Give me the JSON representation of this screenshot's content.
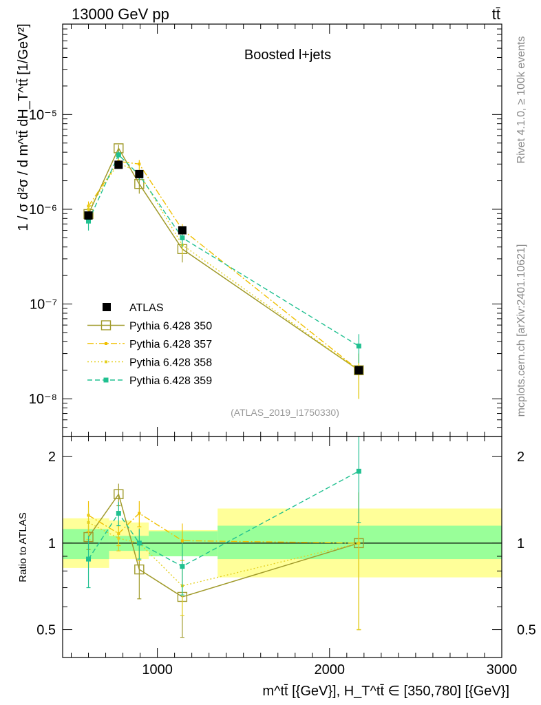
{
  "header": {
    "left": "13000 GeV pp",
    "right": "tt̄"
  },
  "side": {
    "rivet": "Rivet 4.1.0, ≥ 100k events",
    "source": "mcplots.cern.ch [arXiv:2401.10621]"
  },
  "chart_data": {
    "type": "line",
    "title": "Boosted l+jets",
    "analysis_id": "(ATLAS_2019_I1750330)",
    "ylabel_main": "1 / σ d²σ / d m^tt̄ dH_T^tt̄ [1/GeV²]",
    "ylabel_ratio": "Ratio to ATLAS",
    "xlabel": "m^tt̄ [{GeV}], H_T^tt̄ ∈ [350,780] [{GeV}]",
    "xlim": [
      450,
      3000
    ],
    "ylim_main": [
      4e-09,
      9e-05
    ],
    "ylim_ratio": [
      0.4,
      2.35
    ],
    "x_ticks": [
      1000,
      2000,
      3000
    ],
    "x_tick_labels": [
      "1000",
      "2000",
      "3000"
    ],
    "y_ticks_main": [
      1e-08,
      1e-07,
      1e-06,
      1e-05
    ],
    "y_tick_labels_main": [
      "10⁻⁸",
      "10⁻⁷",
      "10⁻⁶",
      "10⁻⁵"
    ],
    "y_ticks_ratio": [
      0.5,
      1,
      2
    ],
    "y_tick_labels_ratio": [
      "0.5",
      "1",
      "2"
    ],
    "bins": [
      {
        "lo": 450,
        "hi": 720
      },
      {
        "lo": 720,
        "hi": 850
      },
      {
        "lo": 850,
        "hi": 950
      },
      {
        "lo": 950,
        "hi": 1350
      },
      {
        "lo": 1350,
        "hi": 3000
      }
    ],
    "data": {
      "name": "ATLAS",
      "color": "#000000",
      "x": [
        600,
        775,
        895,
        1145,
        2170
      ],
      "y": [
        8.6e-07,
        2.95e-06,
        2.35e-06,
        6e-07,
        2e-08
      ],
      "err_lo": [
        7.8e-08,
        1.9e-07,
        1.6e-07,
        5.5e-08,
        2e-09
      ],
      "err_hi": [
        7.8e-08,
        1.9e-07,
        1.6e-07,
        5.5e-08,
        2e-09
      ],
      "band_inner": [
        [
          0.88,
          1.12
        ],
        [
          0.94,
          1.06
        ],
        [
          0.94,
          1.06
        ],
        [
          0.9,
          1.1
        ],
        [
          0.88,
          1.15
        ]
      ],
      "band_outer": [
        [
          0.82,
          1.22
        ],
        [
          0.88,
          1.2
        ],
        [
          0.88,
          1.18
        ],
        [
          0.95,
          1.11
        ],
        [
          0.76,
          1.32
        ]
      ]
    },
    "series": [
      {
        "name": "Pythia 6.428 350",
        "color": "#a09a2a",
        "dash": "",
        "marker": "open-square",
        "x": [
          600,
          775,
          895,
          1145,
          2170
        ],
        "y": [
          8.9e-07,
          4.4e-06,
          1.85e-06,
          3.8e-07,
          2e-08
        ],
        "ratio": [
          1.05,
          1.48,
          0.81,
          0.65,
          1.0
        ],
        "ratio_err": [
          0.1,
          0.13,
          0.17,
          0.18,
          0.5
        ]
      },
      {
        "name": "Pythia 6.428 357",
        "color": "#f0c000",
        "dash": "9,3,2,3",
        "marker": "small-square",
        "x": [
          600,
          775,
          895,
          1145,
          2170
        ],
        "y": [
          1.08e-06,
          3.2e-06,
          3e-06,
          6.1e-07,
          2e-08
        ],
        "ratio": [
          1.25,
          1.08,
          1.27,
          1.02,
          1.0
        ],
        "ratio_err": [
          0.15,
          0.1,
          0.13,
          0.15,
          0.5
        ]
      },
      {
        "name": "Pythia 6.428 358",
        "color": "#e4d020",
        "dash": "2,3",
        "marker": "small-square",
        "x": [
          600,
          775,
          895,
          1145,
          2170
        ],
        "y": [
          1e-06,
          3.1e-06,
          2.4e-06,
          4.2e-07,
          2e-08
        ],
        "ratio": [
          1.18,
          1.04,
          1.0,
          0.71,
          1.0
        ],
        "ratio_err": [
          0.15,
          0.1,
          0.13,
          0.15,
          0.5
        ]
      },
      {
        "name": "Pythia 6.428 359",
        "color": "#20c090",
        "dash": "7,4",
        "marker": "filled-square",
        "x": [
          600,
          775,
          895,
          1145,
          2170
        ],
        "y": [
          7.5e-07,
          3.75e-06,
          2.3e-06,
          5e-07,
          3.6e-08
        ],
        "ratio": [
          0.88,
          1.27,
          1.0,
          0.83,
          1.78
        ],
        "ratio_err": [
          0.18,
          0.12,
          0.12,
          0.17,
          0.6
        ]
      }
    ]
  }
}
